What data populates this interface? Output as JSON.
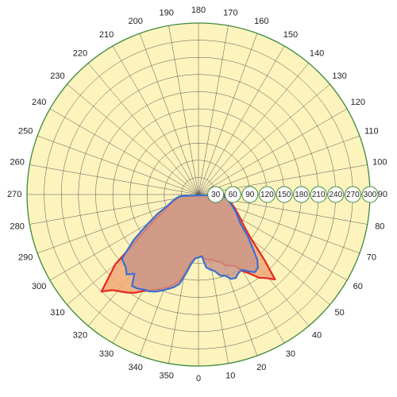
{
  "chart_data": {
    "type": "polar",
    "title": "",
    "radial_axis": {
      "range": [
        0,
        300
      ],
      "ticks": [
        30,
        60,
        90,
        120,
        150,
        180,
        210,
        240,
        270,
        300
      ],
      "tick_labels": [
        "30",
        "60",
        "90",
        "120",
        "150",
        "180",
        "210",
        "240",
        "270",
        "300"
      ],
      "label_angle_deg": 90
    },
    "angular_axis": {
      "ticks": [
        0,
        10,
        20,
        30,
        40,
        50,
        60,
        70,
        80,
        90,
        100,
        110,
        120,
        130,
        140,
        150,
        160,
        170,
        180,
        190,
        200,
        210,
        220,
        230,
        240,
        250,
        260,
        270,
        280,
        290,
        300,
        310,
        320,
        330,
        340,
        350
      ],
      "tick_labels": [
        "0",
        "10",
        "20",
        "30",
        "40",
        "50",
        "60",
        "70",
        "80",
        "90",
        "100",
        "110",
        "120",
        "130",
        "140",
        "150",
        "160",
        "170",
        "180",
        "190",
        "200",
        "210",
        "220",
        "230",
        "240",
        "250",
        "260",
        "270",
        "280",
        "290",
        "300",
        "310",
        "320",
        "330",
        "340",
        "350"
      ],
      "zero_direction": "bottom",
      "direction": "counterclockwise"
    },
    "grid": true,
    "series": [
      {
        "color": "#e8261f",
        "fill": "#f0a878",
        "angles": [
          0,
          3,
          6,
          9,
          12,
          15,
          18,
          21,
          24,
          27,
          30,
          33,
          36,
          39,
          42,
          45,
          50,
          55,
          60,
          65,
          70,
          75,
          80,
          85,
          90,
          275,
          280,
          285,
          290,
          295,
          300,
          305,
          310,
          315,
          318,
          321,
          324,
          327,
          330,
          333,
          336,
          339,
          342,
          345,
          348,
          351,
          354,
          357
        ],
        "r": [
          110,
          108,
          113,
          116,
          116,
          121,
          124,
          133,
          136,
          140,
          155,
          165,
          180,
          188,
          200,
          165,
          120,
          98,
          85,
          75,
          67,
          60,
          55,
          48,
          45,
          28,
          38,
          45,
          55,
          65,
          88,
          120,
          190,
          240,
          225,
          218,
          212,
          205,
          195,
          188,
          182,
          176,
          170,
          162,
          154,
          135,
          118,
          112
        ]
      },
      {
        "color": "#3a6fd0",
        "fill": "#c9958a",
        "angles": [
          0,
          3,
          6,
          9,
          12,
          15,
          18,
          21,
          24,
          27,
          30,
          33,
          36,
          39,
          42,
          45,
          50,
          55,
          60,
          65,
          70,
          75,
          80,
          85,
          90,
          275,
          280,
          285,
          290,
          295,
          300,
          305,
          310,
          315,
          318,
          321,
          324,
          327,
          330,
          333,
          336,
          339,
          342,
          345,
          348,
          351,
          354,
          357
        ],
        "r": [
          110,
          108,
          128,
          133,
          137,
          147,
          149,
          158,
          160,
          154,
          152,
          160,
          168,
          165,
          154,
          135,
          112,
          90,
          80,
          72,
          64,
          58,
          52,
          46,
          42,
          32,
          40,
          48,
          58,
          78,
          102,
          138,
          175,
          180,
          188,
          178,
          198,
          196,
          192,
          190,
          186,
          180,
          174,
          168,
          160,
          140,
          122,
          112
        ]
      }
    ]
  }
}
